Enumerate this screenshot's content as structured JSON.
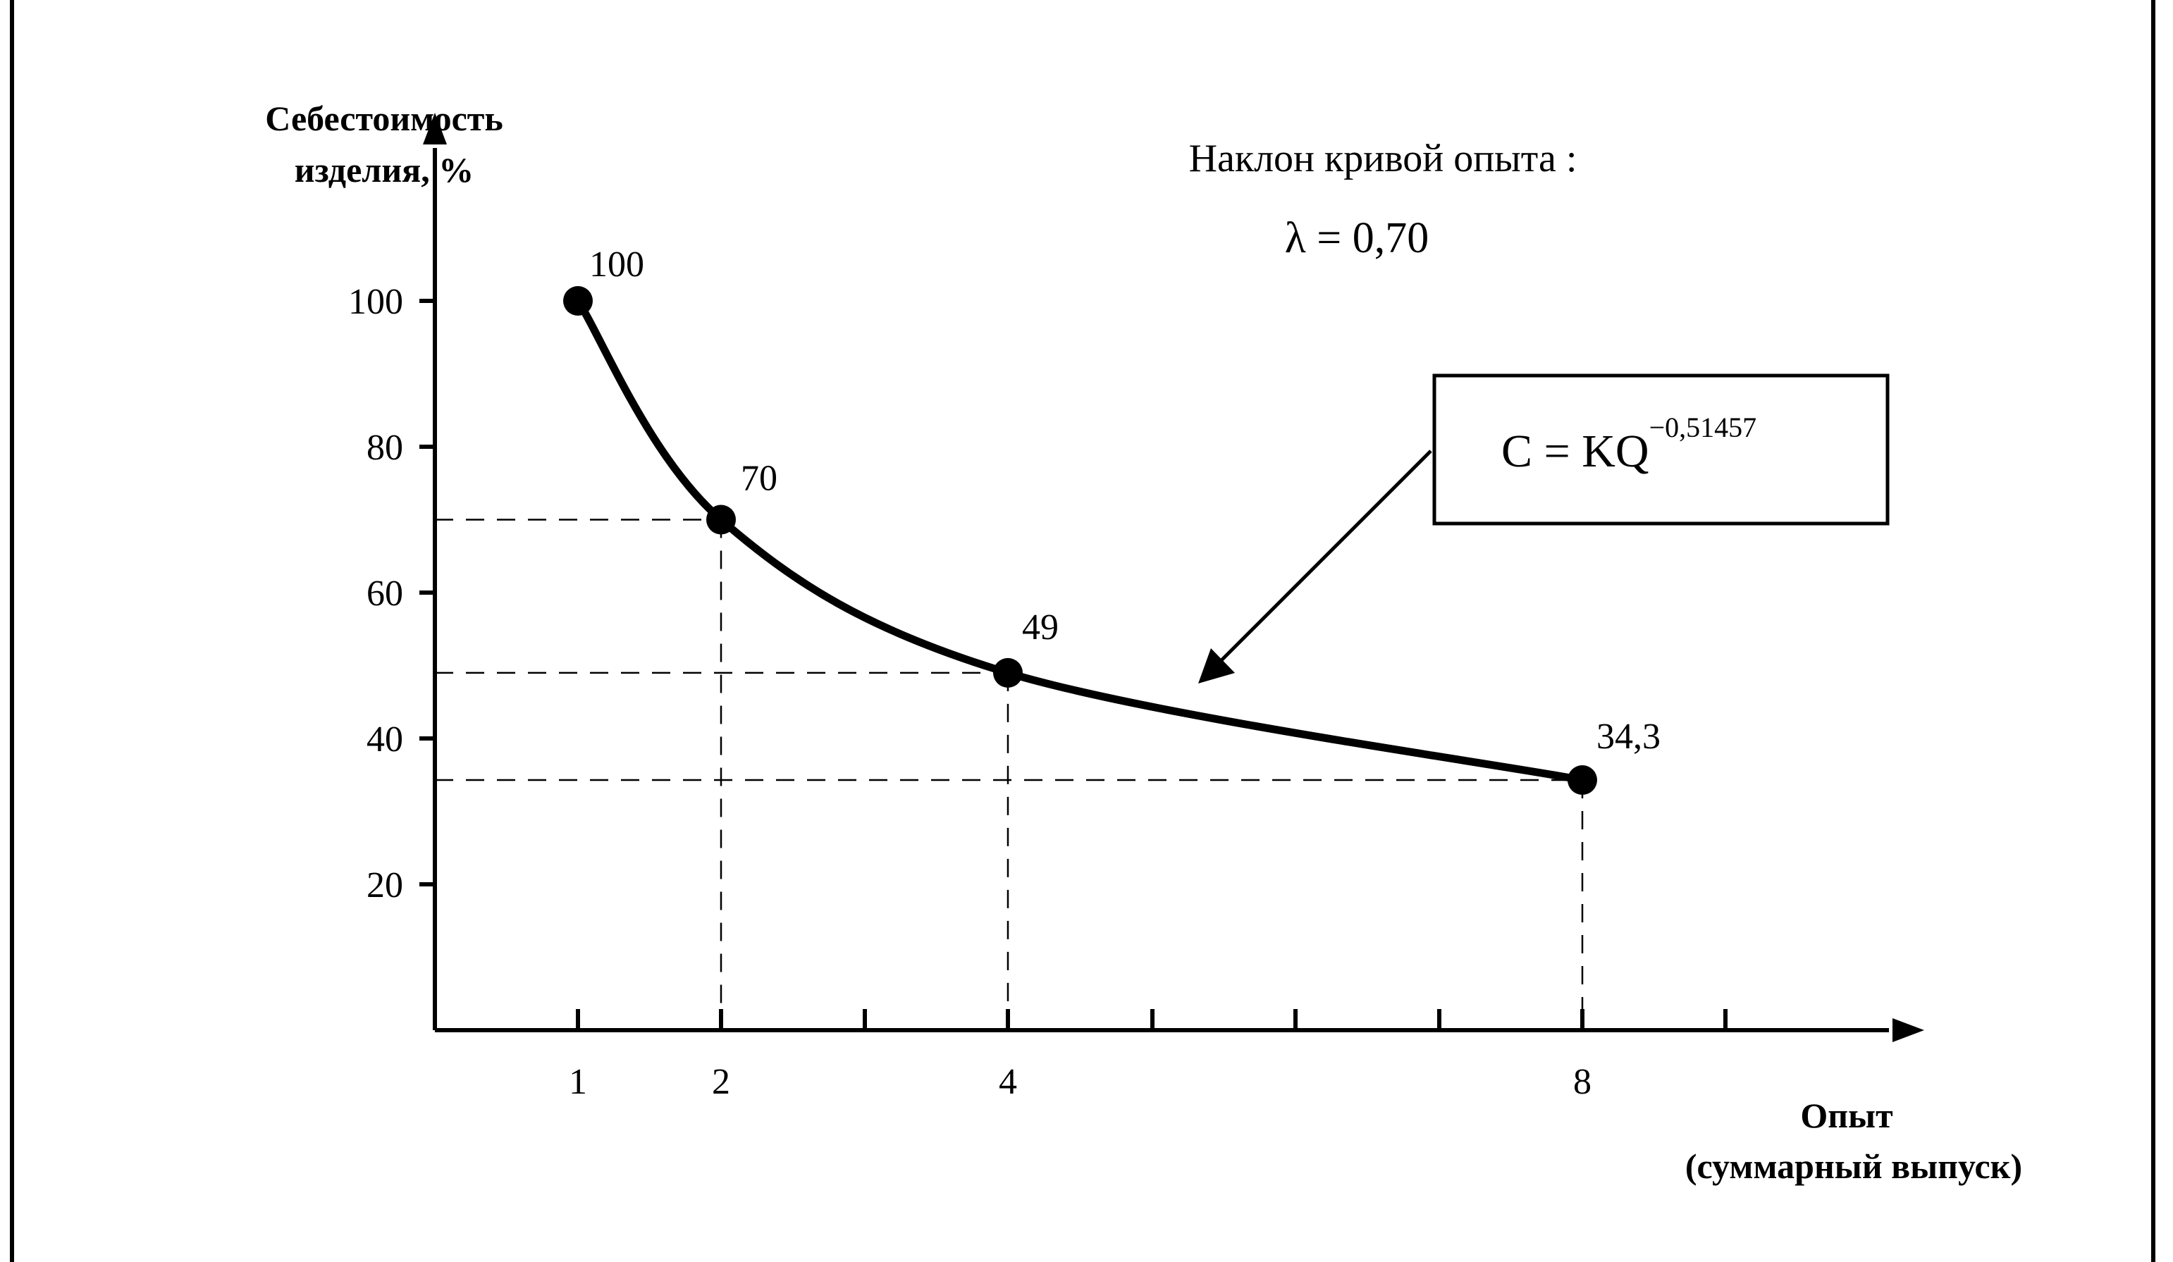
{
  "chart_data": {
    "type": "line",
    "title": "",
    "ylabel": [
      "Себестоимость",
      "изделия, %"
    ],
    "xlabel": [
      "Опыт",
      "(суммарный выпуск)"
    ],
    "x_scale": "log2",
    "x_ticks": [
      1,
      2,
      3,
      4,
      5,
      6,
      7,
      8,
      9
    ],
    "x_tick_labels": {
      "1": "1",
      "2": "2",
      "4": "4",
      "8": "8"
    },
    "y_ticks": [
      20,
      40,
      60,
      80,
      100
    ],
    "y_tick_labels": [
      "20",
      "40",
      "60",
      "80",
      "100"
    ],
    "ylim": [
      0,
      120
    ],
    "grid": false,
    "series": [
      {
        "name": "",
        "x": [
          1,
          2,
          4,
          8
        ],
        "y": [
          100,
          70,
          49,
          34.3
        ],
        "labels": [
          "100",
          "70",
          "49",
          "34,3"
        ],
        "color": "#000000"
      }
    ],
    "annotations": {
      "slope_caption": "Наклон кривой опыта :",
      "slope_value": "λ = 0,70",
      "formula_base": "C = KQ",
      "formula_exponent": "−0,51457"
    }
  }
}
